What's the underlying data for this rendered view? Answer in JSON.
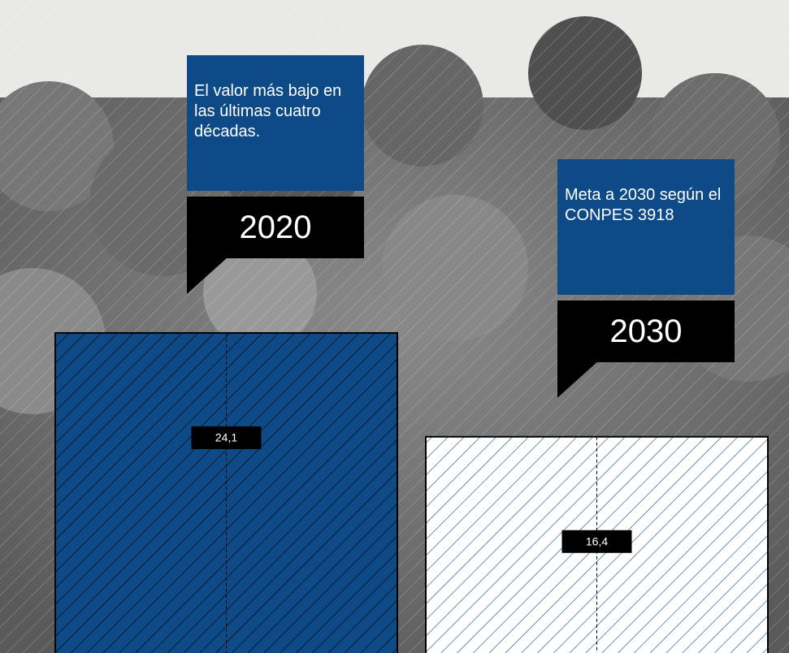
{
  "chart_data": {
    "type": "bar",
    "categories": [
      "2020",
      "2030"
    ],
    "values": [
      24.1,
      16.4
    ],
    "value_labels": [
      "24,1",
      "16,4"
    ],
    "annotations": [
      "El valor más bajo en las últimas cuatro décadas.",
      "Meta a 2030 según el CONPES 3918"
    ],
    "colors": [
      "#0d4a86",
      "#ffffff"
    ]
  }
}
